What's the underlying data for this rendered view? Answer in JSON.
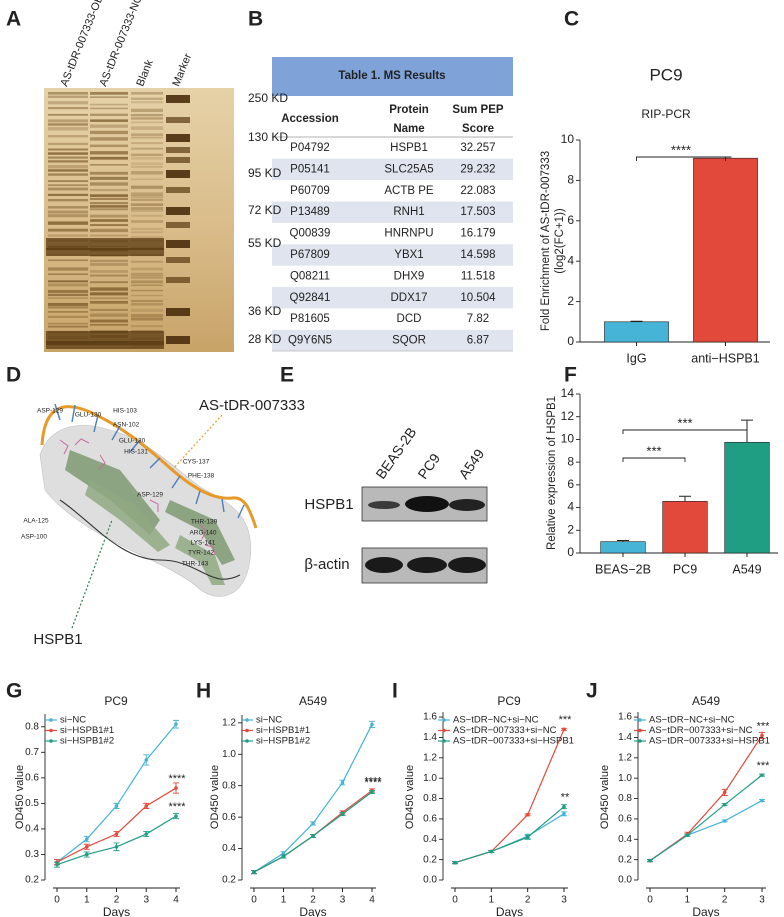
{
  "panels": [
    "A",
    "B",
    "C",
    "D",
    "E",
    "F",
    "G",
    "H",
    "I",
    "J"
  ],
  "gel": {
    "lanes": [
      "AS-tDR-007333-OE",
      "AS-tDR-007333-NC",
      "Blank",
      "Marker"
    ],
    "sizes": [
      "250 KD",
      "130 KD",
      "95 KD",
      "72 KD",
      "55 KD",
      "36 KD",
      "28 KD"
    ]
  },
  "table": {
    "title": "Table 1. MS Results",
    "header": [
      [
        "Accession"
      ],
      [
        "Protein",
        "Name"
      ],
      [
        "Sum PEP",
        "Score"
      ]
    ],
    "rows": [
      [
        "P04792",
        "HSPB1",
        "32.257"
      ],
      [
        "P05141",
        "SLC25A5",
        "29.232"
      ],
      [
        "P60709",
        "ACTB PE",
        "22.083"
      ],
      [
        "P13489",
        "RNH1",
        "17.503"
      ],
      [
        "Q00839",
        "HNRNPU",
        "16.179"
      ],
      [
        "P67809",
        "YBX1",
        "14.598"
      ],
      [
        "Q08211",
        "DHX9",
        "11.518"
      ],
      [
        "Q92841",
        "DDX17",
        "10.504"
      ],
      [
        "P81605",
        "DCD",
        "7.82"
      ],
      [
        "Q9Y6N5",
        "SQOR",
        "6.87"
      ]
    ]
  },
  "structure": {
    "rna_label": "AS-tDR-007333",
    "protein_label": "HSPB1",
    "residues": [
      "ASP-129",
      "GLU-130",
      "HIS-103",
      "ASN-102",
      "GLU-130",
      "HIS-131",
      "CYS-137",
      "PHE-138",
      "ALA-125",
      "ASP-100",
      "ASP-129",
      "THR-139",
      "ARG-140",
      "LYS-141",
      "TYR-142",
      "THR-143"
    ]
  },
  "blot": {
    "lanes": [
      "BEAS-2B",
      "PC9",
      "A549"
    ],
    "proteins": [
      "HSPB1",
      "β-actin"
    ]
  },
  "chart_data": [
    {
      "type": "bar",
      "title": "PC9",
      "subtitle": "RIP-PCR",
      "ylabel": [
        "Fold Enrichment of AS-tDR-007333",
        "(log2(FC+1))"
      ],
      "categories": [
        "IgG",
        "anti−HSPB1"
      ],
      "values": [
        1.0,
        9.1
      ],
      "errors": [
        0.03,
        0.06
      ],
      "colors": [
        "#45b4d6",
        "#e2493a"
      ],
      "ylim": [
        0,
        10
      ],
      "yticks": [
        0,
        2,
        4,
        6,
        8,
        10
      ],
      "comparisons": [
        {
          "between": [
            "IgG",
            "anti−HSPB1"
          ],
          "label": "****"
        }
      ]
    },
    {
      "type": "bar",
      "ylabel": "Relative expression of HSPB1",
      "categories": [
        "BEAS−2B",
        "PC9",
        "A549"
      ],
      "values": [
        1.0,
        4.55,
        9.75
      ],
      "errors": [
        0.1,
        0.45,
        1.95
      ],
      "colors": [
        "#45b4d6",
        "#e2493a",
        "#1f9e84"
      ],
      "ylim": [
        0,
        14
      ],
      "yticks": [
        0,
        2,
        4,
        6,
        8,
        10,
        12,
        14
      ],
      "comparisons": [
        {
          "between": [
            "BEAS−2B",
            "A549"
          ],
          "label": "***"
        },
        {
          "between": [
            "BEAS−2B",
            "PC9"
          ],
          "label": "***"
        }
      ]
    },
    {
      "type": "line",
      "title": "PC9",
      "xlabel": "Days",
      "ylabel": "OD450 value",
      "x": [
        0,
        1,
        2,
        3,
        4
      ],
      "xlim": [
        0,
        4
      ],
      "xticks": [
        0,
        1,
        2,
        3,
        4
      ],
      "ylim": [
        0.2,
        0.85
      ],
      "yticks": [
        {
          "value": 0.2,
          "label": "0.2"
        },
        {
          "value": 0.3,
          "label": "0.3"
        },
        {
          "value": 0.4,
          "label": "0.4"
        },
        {
          "value": 0.5,
          "label": "0.5"
        },
        {
          "value": 0.6,
          "label": "0.6"
        },
        {
          "value": 0.7,
          "label": "0.7"
        },
        {
          "value": 0.8,
          "label": "0.8"
        }
      ],
      "series": [
        {
          "name": "si−NC",
          "color": "#45b4d6",
          "values": [
            0.27,
            0.36,
            0.49,
            0.67,
            0.81
          ],
          "errors": [
            0.01,
            0.01,
            0.01,
            0.02,
            0.015
          ]
        },
        {
          "name": "si−HSPB1#1",
          "color": "#e2493a",
          "values": [
            0.27,
            0.33,
            0.38,
            0.49,
            0.56
          ],
          "errors": [
            0.01,
            0.01,
            0.01,
            0.01,
            0.02
          ],
          "annotation": "****"
        },
        {
          "name": "si−HSPB1#2",
          "color": "#1f9e84",
          "values": [
            0.26,
            0.3,
            0.33,
            0.38,
            0.45
          ],
          "errors": [
            0.01,
            0.01,
            0.015,
            0.01,
            0.01
          ],
          "annotation": "****"
        }
      ]
    },
    {
      "type": "line",
      "title": "A549",
      "xlabel": "Days",
      "ylabel": "OD450 value",
      "x": [
        0,
        1,
        2,
        3,
        4
      ],
      "xlim": [
        0,
        4
      ],
      "xticks": [
        0,
        1,
        2,
        3,
        4
      ],
      "ylim": [
        0.2,
        1.25
      ],
      "yticks": [
        {
          "value": 0.2,
          "label": "0.2"
        },
        {
          "value": 0.4,
          "label": "0.4"
        },
        {
          "value": 0.6,
          "label": "0.6"
        },
        {
          "value": 0.8,
          "label": "0.8"
        },
        {
          "value": 1.0,
          "label": "1.0"
        },
        {
          "value": 1.2,
          "label": "1.2"
        }
      ],
      "series": [
        {
          "name": "si−NC",
          "color": "#45b4d6",
          "values": [
            0.25,
            0.37,
            0.56,
            0.82,
            1.19
          ],
          "errors": [
            0.01,
            0.01,
            0.01,
            0.015,
            0.02
          ]
        },
        {
          "name": "si−HSPB1#1",
          "color": "#e2493a",
          "values": [
            0.25,
            0.35,
            0.48,
            0.63,
            0.77
          ],
          "errors": [
            0.01,
            0.01,
            0.01,
            0.01,
            0.01
          ],
          "annotation": "****"
        },
        {
          "name": "si−HSPB1#2",
          "color": "#1f9e84",
          "values": [
            0.25,
            0.35,
            0.48,
            0.62,
            0.76
          ],
          "errors": [
            0.01,
            0.01,
            0.01,
            0.01,
            0.01
          ],
          "annotation": "****"
        }
      ]
    },
    {
      "type": "line",
      "title": "PC9",
      "xlabel": "Days",
      "ylabel": "OD450 value",
      "x": [
        0,
        1,
        2,
        3
      ],
      "xlim": [
        0,
        3
      ],
      "xticks": [
        0,
        1,
        2,
        3
      ],
      "ylim": [
        0,
        1.65
      ],
      "yticks": [
        {
          "value": 0,
          "label": "0.0"
        },
        {
          "value": 0.2,
          "label": "0.2"
        },
        {
          "value": 0.4,
          "label": "0.4"
        },
        {
          "value": 0.6,
          "label": "0.6"
        },
        {
          "value": 0.8,
          "label": "0.8"
        },
        {
          "value": 1.0,
          "label": "1.0"
        },
        {
          "value": 1.2,
          "label": "1.2"
        },
        {
          "value": 1.4,
          "label": "1.4"
        },
        {
          "value": 1.6,
          "label": "1.6"
        }
      ],
      "series": [
        {
          "name": "AS−tDR−NC+si−NC",
          "color": "#45b4d6",
          "values": [
            0.17,
            0.28,
            0.43,
            0.65
          ],
          "errors": [
            0.01,
            0.01,
            0.02,
            0.02
          ]
        },
        {
          "name": "AS−tDR−007333+si−NC",
          "color": "#e2493a",
          "values": [
            0.17,
            0.28,
            0.64,
            1.48
          ],
          "errors": [
            0.01,
            0.01,
            0.01,
            0.01
          ],
          "annotation": "***"
        },
        {
          "name": "AS−tDR−007333+si−HSPB1",
          "color": "#1f9e84",
          "values": [
            0.17,
            0.28,
            0.42,
            0.72
          ],
          "errors": [
            0.01,
            0.01,
            0.02,
            0.02
          ],
          "annotation": "**"
        }
      ]
    },
    {
      "type": "line",
      "title": "A549",
      "xlabel": "Days",
      "ylabel": "OD450 value",
      "x": [
        0,
        1,
        2,
        3
      ],
      "xlim": [
        0,
        3
      ],
      "xticks": [
        0,
        1,
        2,
        3
      ],
      "ylim": [
        0,
        1.65
      ],
      "yticks": [
        {
          "value": 0,
          "label": "0.0"
        },
        {
          "value": 0.2,
          "label": "0.2"
        },
        {
          "value": 0.4,
          "label": "0.4"
        },
        {
          "value": 0.6,
          "label": "0.6"
        },
        {
          "value": 0.8,
          "label": "0.8"
        },
        {
          "value": 1.0,
          "label": "1.0"
        },
        {
          "value": 1.2,
          "label": "1.2"
        },
        {
          "value": 1.4,
          "label": "1.4"
        },
        {
          "value": 1.6,
          "label": "1.6"
        }
      ],
      "series": [
        {
          "name": "AS−tDR−NC+si−NC",
          "color": "#45b4d6",
          "values": [
            0.19,
            0.44,
            0.58,
            0.78
          ],
          "errors": [
            0.01,
            0.01,
            0.01,
            0.01
          ]
        },
        {
          "name": "AS−tDR−007333+si−NC",
          "color": "#e2493a",
          "values": [
            0.19,
            0.45,
            0.86,
            1.42
          ],
          "errors": [
            0.01,
            0.02,
            0.03,
            0.03
          ],
          "annotation": "***"
        },
        {
          "name": "AS−tDR−007333+si−HSPB1",
          "color": "#1f9e84",
          "values": [
            0.19,
            0.44,
            0.74,
            1.03
          ],
          "errors": [
            0.01,
            0.01,
            0.01,
            0.01
          ],
          "annotation": "***"
        }
      ]
    }
  ]
}
